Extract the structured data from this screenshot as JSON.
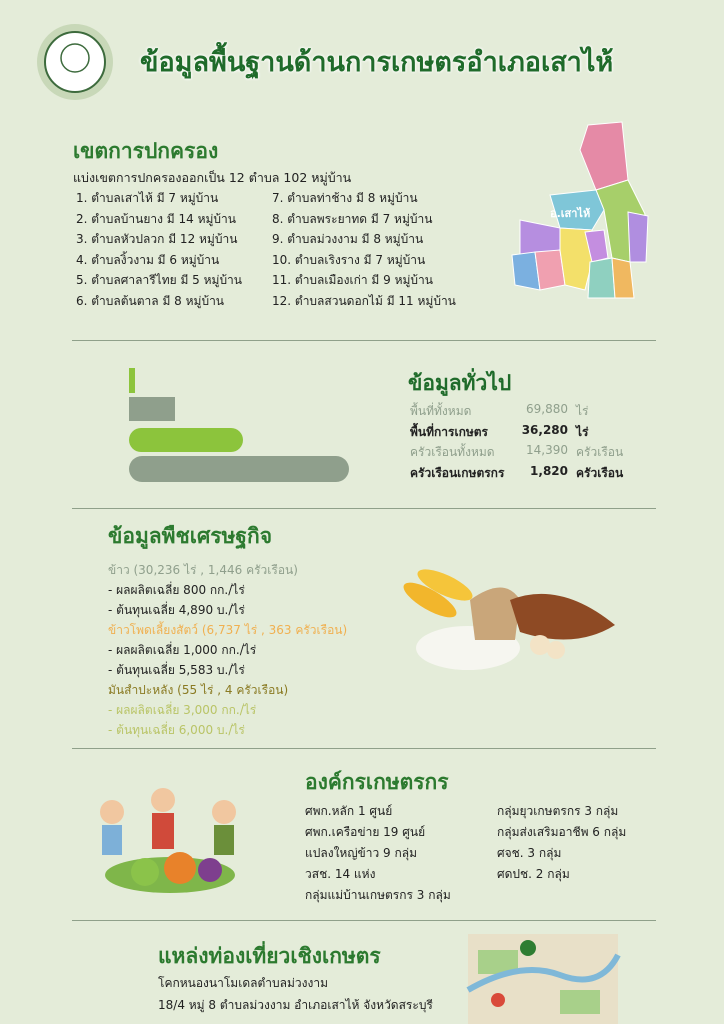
{
  "header": {
    "title": "ข้อมูลพื้นฐานด้านการเกษตรอำเภอเสาไห้"
  },
  "governance": {
    "title": "เขตการปกครอง",
    "intro": "แบ่งเขตการปกครองออกเป็น 12 ตำบล 102 หมู่บ้าน",
    "left": [
      "1. ตำบลเสาไห้ มี 7 หมู่บ้าน",
      "2. ตำบลบ้านยาง มี 14 หมู่บ้าน",
      "3. ตำบลหัวปลวก มี 12 หมู่บ้าน",
      "4. ตำบลงิ้วงาม มี 6 หมู่บ้าน",
      "5. ตำบลศาลารีไทย มี 5 หมู่บ้าน",
      "6. ตำบลต้นตาล มี 8 หมู่บ้าน"
    ],
    "right": [
      "7. ตำบลท่าช้าง มี 8 หมู่บ้าน",
      "8. ตำบลพระยาทด มี 7 หมู่บ้าน",
      "9. ตำบลม่วงงาม มี 8 หมู่บ้าน",
      "10. ตำบลเริงราง มี 7 หมู่บ้าน",
      "11. ตำบลเมืองเก่า มี 9 หมู่บ้าน",
      "12. ตำบลสวนดอกไม้ มี 11 หมู่บ้าน"
    ],
    "map_label": "อ.เสาไห้"
  },
  "general": {
    "title": "ข้อมูลทั่วไป",
    "rows": [
      {
        "label": "พื้นที่ทั้งหมด",
        "value": "69,880",
        "unit": "ไร่"
      },
      {
        "label": "พื้นที่การเกษตร",
        "value": "36,280",
        "unit": "ไร่"
      },
      {
        "label": "ครัวเรือนทั้งหมด",
        "value": "14,390",
        "unit": "ครัวเรือน"
      },
      {
        "label": "ครัวเรือนเกษตรกร",
        "value": "1,820",
        "unit": "ครัวเรือน"
      }
    ]
  },
  "crops": {
    "title": "ข้อมูลพืชเศรษฐกิจ",
    "items": [
      {
        "header": "ข้าว (30,236 ไร่ , 1,446 ครัวเรือน)",
        "yield": "- ผลผลิตเฉลี่ย  800 กก./ไร่",
        "cost": "- ต้นทุนเฉลี่ย   4,890 บ./ไร่"
      },
      {
        "header": "ข้าวโพดเลี้ยงสัตว์ (6,737 ไร่ , 363 ครัวเรือน)",
        "yield": "- ผลผลิตเฉลี่ย  1,000 กก./ไร่",
        "cost": "- ต้นทุนเฉลี่ย  5,583 บ./ไร่"
      },
      {
        "header": "มันสำปะหลัง (55 ไร่ , 4 ครัวเรือน)",
        "yield": "- ผลผลิตเฉลี่ย 3,000 กก./ไร่",
        "cost": "- ต้นทุนเฉลี่ย 6,000 บ./ไร่"
      }
    ]
  },
  "organizations": {
    "title": "องค์กรเกษตรกร",
    "left": [
      "ศพก.หลัก  1  ศูนย์",
      "ศพก.เครือข่าย 19 ศูนย์",
      "แปลงใหญ่ข้าว 9 กลุ่ม",
      "วสช. 14 แห่ง",
      "กลุ่มแม่บ้านเกษตรกร 3 กลุ่ม"
    ],
    "right": [
      "กลุ่มยุวเกษตรกร 3 กลุ่ม",
      "กลุ่มส่งเสริมอาชีพ 6 กลุ่ม",
      "ศจช. 3 กลุ่ม",
      "ศดปช. 2 กลุ่ม"
    ]
  },
  "tourism": {
    "title": "แหล่งท่องเที่ยวเชิงเกษตร",
    "lines": [
      "โคกหนองนาโมเดลตำบลม่วงงาม",
      "18/4 หมู่ 8 ตำบลม่วงงาม อำเภอเสาไห้ จังหวัดสระบุรี"
    ]
  }
}
